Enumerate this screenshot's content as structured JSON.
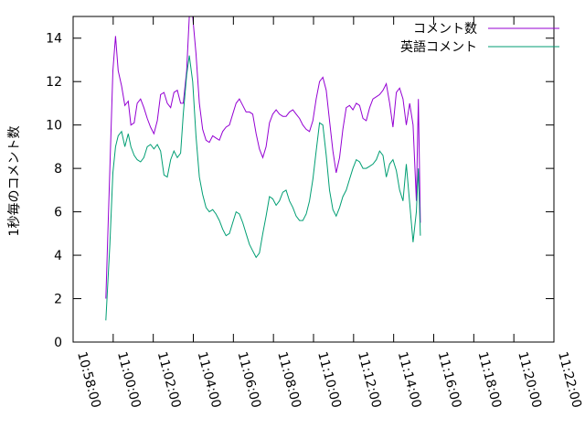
{
  "chart_data": {
    "type": "line",
    "ylabel": "1秒毎のコメント数",
    "xlabel": "",
    "title": "",
    "ylim": [
      0,
      15
    ],
    "yticks": [
      0,
      2,
      4,
      6,
      8,
      10,
      12,
      14
    ],
    "xlim": [
      "10:58:00",
      "11:22:00"
    ],
    "xticks": [
      "10:58:00",
      "11:00:00",
      "11:02:00",
      "11:04:00",
      "11:06:00",
      "11:08:00",
      "11:10:00",
      "11:12:00",
      "11:14:00",
      "11:16:00",
      "11:18:00",
      "11:20:00",
      "11:22:00"
    ],
    "grid": false,
    "legend": "top-right",
    "series": [
      {
        "name": "コメント数",
        "color": "#9400d3",
        "points": [
          [
            "10:59:38",
            2.0
          ],
          [
            "10:59:50",
            8.0
          ],
          [
            "10:59:59",
            12.5
          ],
          [
            "11:00:07",
            14.1
          ],
          [
            "11:00:15",
            12.5
          ],
          [
            "11:00:25",
            11.8
          ],
          [
            "11:00:35",
            10.9
          ],
          [
            "11:00:45",
            11.1
          ],
          [
            "11:00:53",
            10.0
          ],
          [
            "11:01:03",
            10.1
          ],
          [
            "11:01:12",
            11.0
          ],
          [
            "11:01:22",
            11.2
          ],
          [
            "11:01:32",
            10.8
          ],
          [
            "11:01:42",
            10.3
          ],
          [
            "11:01:52",
            9.9
          ],
          [
            "11:02:02",
            9.6
          ],
          [
            "11:02:12",
            10.2
          ],
          [
            "11:02:22",
            11.4
          ],
          [
            "11:02:32",
            11.5
          ],
          [
            "11:02:42",
            11.0
          ],
          [
            "11:02:52",
            10.8
          ],
          [
            "11:03:02",
            11.5
          ],
          [
            "11:03:12",
            11.6
          ],
          [
            "11:03:22",
            11.0
          ],
          [
            "11:03:30",
            11.0
          ],
          [
            "11:03:40",
            12.5
          ],
          [
            "11:03:48",
            15.0
          ],
          [
            "11:03:58",
            15.0
          ],
          [
            "11:04:08",
            13.3
          ],
          [
            "11:04:18",
            11.0
          ],
          [
            "11:04:28",
            9.8
          ],
          [
            "11:04:38",
            9.3
          ],
          [
            "11:04:48",
            9.2
          ],
          [
            "11:04:58",
            9.5
          ],
          [
            "11:05:08",
            9.4
          ],
          [
            "11:05:18",
            9.3
          ],
          [
            "11:05:28",
            9.7
          ],
          [
            "11:05:38",
            9.9
          ],
          [
            "11:05:48",
            10.0
          ],
          [
            "11:05:58",
            10.5
          ],
          [
            "11:06:08",
            11.0
          ],
          [
            "11:06:18",
            11.2
          ],
          [
            "11:06:28",
            10.9
          ],
          [
            "11:06:38",
            10.6
          ],
          [
            "11:06:48",
            10.6
          ],
          [
            "11:06:58",
            10.5
          ],
          [
            "11:07:08",
            9.6
          ],
          [
            "11:07:18",
            8.9
          ],
          [
            "11:07:28",
            8.5
          ],
          [
            "11:07:38",
            9.0
          ],
          [
            "11:07:48",
            10.1
          ],
          [
            "11:07:58",
            10.5
          ],
          [
            "11:08:08",
            10.7
          ],
          [
            "11:08:18",
            10.5
          ],
          [
            "11:08:28",
            10.4
          ],
          [
            "11:08:38",
            10.4
          ],
          [
            "11:08:48",
            10.6
          ],
          [
            "11:08:58",
            10.7
          ],
          [
            "11:09:08",
            10.5
          ],
          [
            "11:09:18",
            10.3
          ],
          [
            "11:09:28",
            10.0
          ],
          [
            "11:09:38",
            9.8
          ],
          [
            "11:09:48",
            9.7
          ],
          [
            "11:09:58",
            10.2
          ],
          [
            "11:10:08",
            11.2
          ],
          [
            "11:10:18",
            12.0
          ],
          [
            "11:10:28",
            12.2
          ],
          [
            "11:10:38",
            11.6
          ],
          [
            "11:10:48",
            10.2
          ],
          [
            "11:10:58",
            8.8
          ],
          [
            "11:11:08",
            7.8
          ],
          [
            "11:11:18",
            8.5
          ],
          [
            "11:11:28",
            9.8
          ],
          [
            "11:11:38",
            10.8
          ],
          [
            "11:11:48",
            10.9
          ],
          [
            "11:11:58",
            10.7
          ],
          [
            "11:12:08",
            11.0
          ],
          [
            "11:12:18",
            10.9
          ],
          [
            "11:12:28",
            10.3
          ],
          [
            "11:12:38",
            10.2
          ],
          [
            "11:12:48",
            10.8
          ],
          [
            "11:12:58",
            11.2
          ],
          [
            "11:13:08",
            11.3
          ],
          [
            "11:13:18",
            11.4
          ],
          [
            "11:13:28",
            11.6
          ],
          [
            "11:13:38",
            11.9
          ],
          [
            "11:13:48",
            11.0
          ],
          [
            "11:13:58",
            9.9
          ],
          [
            "11:14:08",
            11.5
          ],
          [
            "11:14:18",
            11.7
          ],
          [
            "11:14:28",
            11.2
          ],
          [
            "11:14:38",
            10.0
          ],
          [
            "11:14:48",
            11.0
          ],
          [
            "11:14:58",
            10.0
          ],
          [
            "11:15:08",
            6.5
          ],
          [
            "11:15:14",
            11.2
          ],
          [
            "11:15:20",
            5.5
          ]
        ]
      },
      {
        "name": "英語コメント",
        "color": "#009e73",
        "points": [
          [
            "10:59:38",
            1.0
          ],
          [
            "10:59:50",
            4.5
          ],
          [
            "10:59:59",
            7.8
          ],
          [
            "11:00:07",
            9.0
          ],
          [
            "11:00:15",
            9.5
          ],
          [
            "11:00:25",
            9.7
          ],
          [
            "11:00:35",
            9.0
          ],
          [
            "11:00:45",
            9.6
          ],
          [
            "11:00:53",
            9.0
          ],
          [
            "11:01:03",
            8.6
          ],
          [
            "11:01:12",
            8.4
          ],
          [
            "11:01:22",
            8.3
          ],
          [
            "11:01:32",
            8.5
          ],
          [
            "11:01:42",
            9.0
          ],
          [
            "11:01:52",
            9.1
          ],
          [
            "11:02:02",
            8.9
          ],
          [
            "11:02:12",
            9.1
          ],
          [
            "11:02:22",
            8.8
          ],
          [
            "11:02:32",
            7.7
          ],
          [
            "11:02:42",
            7.6
          ],
          [
            "11:02:52",
            8.4
          ],
          [
            "11:03:02",
            8.8
          ],
          [
            "11:03:12",
            8.5
          ],
          [
            "11:03:22",
            8.7
          ],
          [
            "11:03:30",
            10.5
          ],
          [
            "11:03:40",
            12.3
          ],
          [
            "11:03:48",
            13.2
          ],
          [
            "11:03:58",
            12.0
          ],
          [
            "11:04:08",
            9.5
          ],
          [
            "11:04:18",
            7.6
          ],
          [
            "11:04:28",
            6.8
          ],
          [
            "11:04:38",
            6.2
          ],
          [
            "11:04:48",
            6.0
          ],
          [
            "11:04:58",
            6.1
          ],
          [
            "11:05:08",
            5.9
          ],
          [
            "11:05:18",
            5.6
          ],
          [
            "11:05:28",
            5.2
          ],
          [
            "11:05:38",
            4.9
          ],
          [
            "11:05:48",
            5.0
          ],
          [
            "11:05:58",
            5.5
          ],
          [
            "11:06:08",
            6.0
          ],
          [
            "11:06:18",
            5.9
          ],
          [
            "11:06:28",
            5.5
          ],
          [
            "11:06:38",
            5.0
          ],
          [
            "11:06:48",
            4.5
          ],
          [
            "11:06:58",
            4.2
          ],
          [
            "11:07:08",
            3.9
          ],
          [
            "11:07:18",
            4.1
          ],
          [
            "11:07:28",
            5.0
          ],
          [
            "11:07:38",
            5.8
          ],
          [
            "11:07:48",
            6.7
          ],
          [
            "11:07:58",
            6.6
          ],
          [
            "11:08:08",
            6.3
          ],
          [
            "11:08:18",
            6.5
          ],
          [
            "11:08:28",
            6.9
          ],
          [
            "11:08:38",
            7.0
          ],
          [
            "11:08:48",
            6.5
          ],
          [
            "11:08:58",
            6.2
          ],
          [
            "11:09:08",
            5.8
          ],
          [
            "11:09:18",
            5.6
          ],
          [
            "11:09:28",
            5.6
          ],
          [
            "11:09:38",
            5.9
          ],
          [
            "11:09:48",
            6.5
          ],
          [
            "11:09:58",
            7.5
          ],
          [
            "11:10:08",
            8.8
          ],
          [
            "11:10:18",
            10.1
          ],
          [
            "11:10:28",
            10.0
          ],
          [
            "11:10:38",
            8.6
          ],
          [
            "11:10:48",
            7.0
          ],
          [
            "11:10:58",
            6.1
          ],
          [
            "11:11:08",
            5.8
          ],
          [
            "11:11:18",
            6.2
          ],
          [
            "11:11:28",
            6.7
          ],
          [
            "11:11:38",
            7.0
          ],
          [
            "11:11:48",
            7.5
          ],
          [
            "11:11:58",
            8.0
          ],
          [
            "11:12:08",
            8.4
          ],
          [
            "11:12:18",
            8.3
          ],
          [
            "11:12:28",
            8.0
          ],
          [
            "11:12:38",
            8.0
          ],
          [
            "11:12:48",
            8.1
          ],
          [
            "11:12:58",
            8.2
          ],
          [
            "11:13:08",
            8.4
          ],
          [
            "11:13:18",
            8.8
          ],
          [
            "11:13:28",
            8.6
          ],
          [
            "11:13:38",
            7.6
          ],
          [
            "11:13:48",
            8.2
          ],
          [
            "11:13:58",
            8.4
          ],
          [
            "11:14:08",
            7.9
          ],
          [
            "11:14:18",
            7.0
          ],
          [
            "11:14:28",
            6.5
          ],
          [
            "11:14:38",
            8.2
          ],
          [
            "11:14:48",
            6.4
          ],
          [
            "11:14:58",
            4.6
          ],
          [
            "11:15:08",
            6.0
          ],
          [
            "11:15:14",
            8.0
          ],
          [
            "11:15:20",
            4.9
          ]
        ]
      }
    ]
  }
}
